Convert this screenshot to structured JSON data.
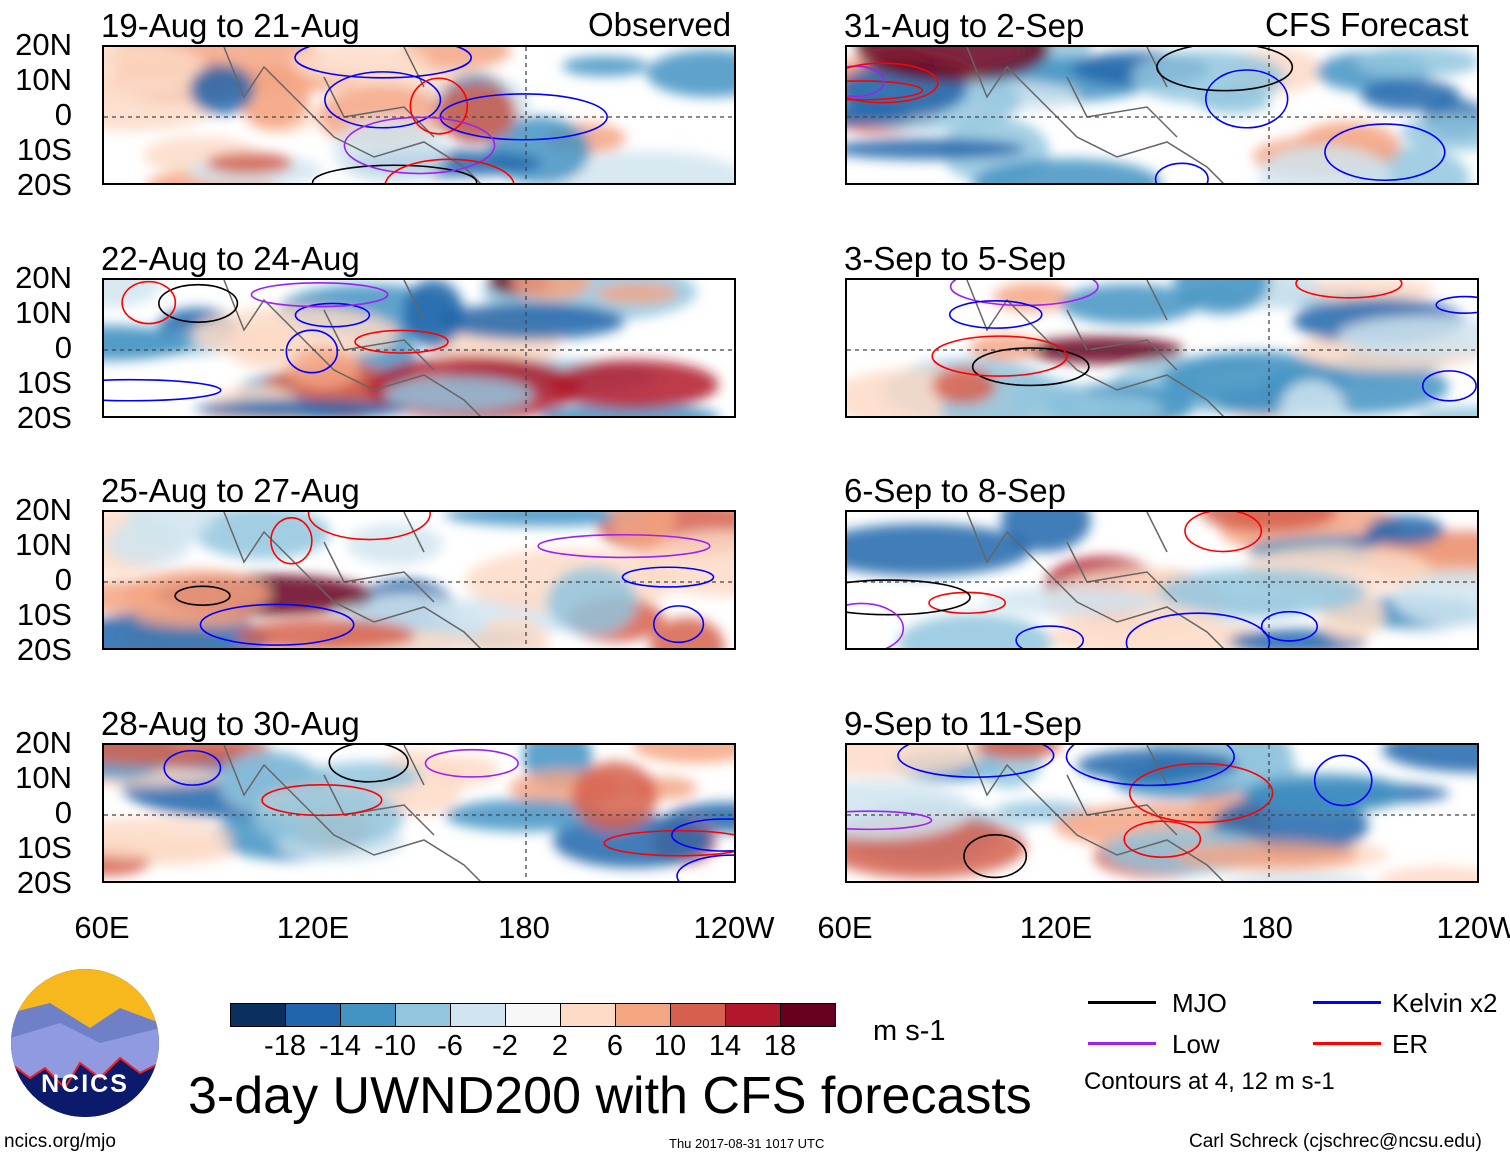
{
  "header": {
    "left_label": "Observed",
    "right_label": "CFS Forecast"
  },
  "panels_left": [
    {
      "title": "19-Aug to 21-Aug"
    },
    {
      "title": "22-Aug to 24-Aug"
    },
    {
      "title": "25-Aug to 27-Aug"
    },
    {
      "title": "28-Aug to 30-Aug"
    }
  ],
  "panels_right": [
    {
      "title": "31-Aug to 2-Sep"
    },
    {
      "title": "3-Sep to 5-Sep"
    },
    {
      "title": "6-Sep to 8-Sep"
    },
    {
      "title": "9-Sep to 11-Sep"
    }
  ],
  "lat_labels": [
    "20N",
    "10N",
    "0",
    "10S",
    "20S"
  ],
  "lon_labels": [
    "60E",
    "120E",
    "180",
    "120W"
  ],
  "colorbar": {
    "colors": [
      "#0b2f5e",
      "#2166ac",
      "#4393c3",
      "#92c5de",
      "#d1e5f0",
      "#f7f7f7",
      "#fddbc7",
      "#f4a582",
      "#d6604d",
      "#b2182b",
      "#67001f"
    ],
    "labels": [
      "-18",
      "-14",
      "-10",
      "-6",
      "-2",
      "2",
      "6",
      "10",
      "14",
      "18"
    ],
    "units": "m s-1"
  },
  "title": "3-day UWND200 with CFS forecasts",
  "legend": {
    "items": [
      {
        "label": "MJO",
        "color": "#000000"
      },
      {
        "label": "Kelvin x2",
        "color": "#0000ff"
      },
      {
        "label": "Low",
        "color": "#a020f0"
      },
      {
        "label": "ER",
        "color": "#ff0000"
      }
    ],
    "note": "Contours at 4, 12 m s-1"
  },
  "logo": {
    "text": "NCICS"
  },
  "footer": {
    "url": "ncics.org/mjo",
    "timestamp": "Thu 2017-08-31 1017 UTC",
    "credit": "Carl Schreck (cjschrec@ncsu.edu)"
  }
}
